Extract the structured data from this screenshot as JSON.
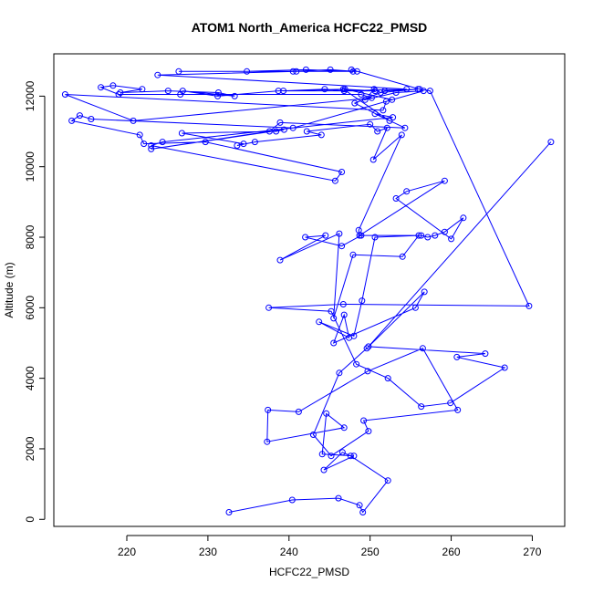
{
  "chart_data": {
    "type": "line",
    "title": "ATOM1 North_America HCFC22_PMSD",
    "xlabel": "HCFC22_PMSD",
    "ylabel": "Altitude (m)",
    "xlim": [
      211,
      274
    ],
    "ylim": [
      -200,
      13200
    ],
    "x_ticks": [
      220,
      230,
      240,
      250,
      260,
      270
    ],
    "y_ticks": [
      0,
      2000,
      4000,
      6000,
      8000,
      10000,
      12000
    ],
    "grid": false,
    "legend": "none",
    "marker": "open-circle",
    "colors": {
      "series": "#0000ff",
      "axes": "#000000",
      "background": "#ffffff"
    },
    "series": [
      {
        "x": [
          232.6,
          240.4,
          246.1,
          248.7,
          249.1,
          252.2,
          247.6,
          246.6,
          244.3,
          248.0,
          244.1,
          244.6,
          246.8,
          237.3,
          237.4,
          241.2,
          249.7,
          256.5,
          260.8,
          249.2,
          249.8,
          245.2,
          243.0,
          246.2,
          249.6,
          256.7,
          255.6,
          245.5,
          246.8,
          247.4,
          243.7,
          248.0,
          249.0,
          250.6,
          256.0,
          254.0,
          247.9,
          245.5,
          246.2,
          238.9,
          244.5,
          242.0,
          246.5,
          248.9,
          256.3,
          257.1,
          258.0,
          259.2,
          261.5,
          260.0,
          253.2,
          254.5,
          259.2,
          248.7,
          248.6,
          253.9,
          250.4,
          252.1,
          250.9,
          250.0,
          242.2,
          244.0,
          235.8,
          233.6,
          234.4,
          226.8,
          238.4,
          239.4,
          223.0,
          237.6,
          238.9,
          254.3,
          250.6,
          252.8,
          224.4,
          223.0,
          245.7,
          246.5,
          229.7,
          222.1,
          221.6,
          213.2,
          214.2,
          215.6,
          240.5,
          252.7,
          246.9,
          238.7,
          231.2,
          226.9,
          233.3,
          231.3,
          225.1,
          219.2,
          221.9,
          218.3,
          216.8,
          219.0,
          226.6,
          248.9,
          250.2,
          220.8,
          212.4,
          251.6,
          252.0,
          256.6,
          253.2,
          249.4,
          250.5,
          251.3,
          255.9,
          251.8,
          248.1,
          252.4,
          246.7,
          250.6,
          239.3,
          244.4,
          246.8,
          254.5,
          223.8,
          240.9,
          247.9,
          242.1,
          234.8,
          226.4,
          240.5,
          245.1,
          248.4,
          247.7,
          256.1,
          257.4,
          269.6,
          246.7,
          237.5,
          245.2,
          248.3,
          252.2,
          256.3,
          259.9,
          266.6,
          260.7,
          264.2,
          249.8,
          272.3
        ],
        "y": [
          200,
          550,
          600,
          400,
          200,
          1100,
          1800,
          1900,
          1400,
          1800,
          1850,
          3000,
          2600,
          2200,
          3100,
          3050,
          4200,
          4850,
          3100,
          2800,
          2500,
          1800,
          2400,
          4150,
          4850,
          6450,
          6000,
          5000,
          5800,
          5150,
          5600,
          5200,
          6200,
          8000,
          8050,
          7450,
          7500,
          5700,
          8100,
          7350,
          8050,
          8000,
          7750,
          8050,
          8050,
          8000,
          8050,
          8150,
          8550,
          7950,
          9100,
          9300,
          9600,
          8050,
          8200,
          10900,
          10200,
          11100,
          11000,
          11200,
          11000,
          10900,
          10700,
          10600,
          10650,
          10950,
          11000,
          11050,
          10500,
          11000,
          11250,
          11100,
          11500,
          11400,
          10700,
          10600,
          9600,
          9850,
          10700,
          10650,
          10900,
          11300,
          11450,
          11350,
          11100,
          11900,
          12200,
          12150,
          12000,
          12150,
          12000,
          12100,
          12150,
          12100,
          12200,
          12300,
          12250,
          12050,
          12050,
          12050,
          11950,
          11300,
          12050,
          11600,
          11850,
          12150,
          12100,
          11900,
          12200,
          12100,
          12200,
          12150,
          11800,
          11300,
          12200,
          12150,
          12150,
          12200,
          12150,
          12200,
          12600,
          12700,
          12700,
          12750,
          12700,
          12700,
          12700,
          12750,
          12700,
          12750,
          12200,
          12150,
          6050,
          6100,
          6000,
          5900,
          4400,
          4000,
          3200,
          3300,
          4300,
          4600,
          4700,
          4900,
          10700
        ]
      }
    ]
  }
}
